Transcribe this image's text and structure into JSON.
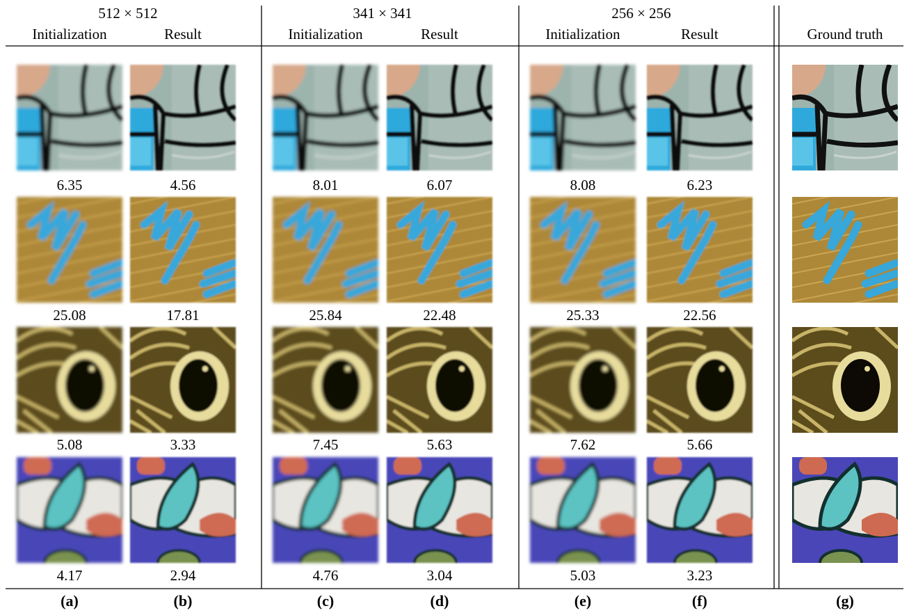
{
  "header": {
    "groups": [
      "512 × 512",
      "341 × 341",
      "256 × 256"
    ],
    "columns": [
      "Initialization",
      "Result",
      "Initialization",
      "Result",
      "Initialization",
      "Result",
      "Ground truth"
    ]
  },
  "rows": [
    [
      6.35,
      4.56,
      8.01,
      6.07,
      8.08,
      6.23
    ],
    [
      25.08,
      17.81,
      25.84,
      22.48,
      25.33,
      22.56
    ],
    [
      5.08,
      3.33,
      7.45,
      5.63,
      7.62,
      5.66
    ],
    [
      4.17,
      2.94,
      4.76,
      3.04,
      5.03,
      3.23
    ]
  ],
  "labels": [
    "(a)",
    "(b)",
    "(c)",
    "(d)",
    "(e)",
    "(f)",
    "(g)"
  ]
}
